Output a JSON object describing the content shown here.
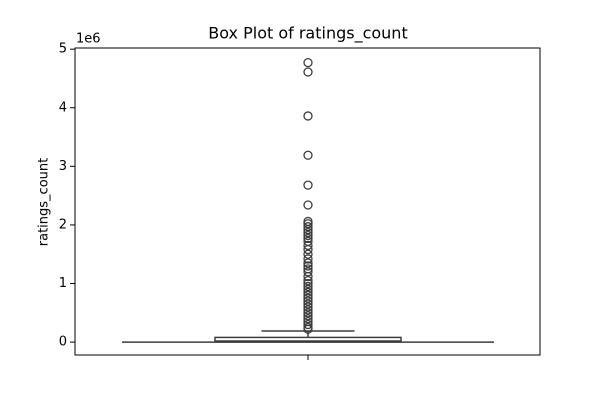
{
  "chart_data": {
    "type": "box",
    "title": "Box Plot of ratings_count",
    "y_label": "ratings_count",
    "offset_label": "1e6",
    "ylim": [
      -0.22,
      5.02
    ],
    "yticks": [
      0,
      1,
      2,
      3,
      4,
      5
    ],
    "color": "#3d3d3d",
    "whisker_low": 0,
    "q1": 0.005,
    "median": 0.02,
    "q3": 0.08,
    "whisker_high": 0.19,
    "outliers": [
      4.77,
      4.61,
      3.86,
      3.19,
      2.68,
      2.34,
      2.06,
      2.02,
      1.97,
      1.92,
      1.87,
      1.82,
      1.77,
      1.72,
      1.65,
      1.58,
      1.5,
      1.42,
      1.35,
      1.3,
      1.25,
      1.2,
      1.12,
      1.05,
      1.0,
      0.95,
      0.9,
      0.85,
      0.8,
      0.75,
      0.7,
      0.65,
      0.6,
      0.55,
      0.5,
      0.45,
      0.4,
      0.35,
      0.3,
      0.25,
      0.22
    ]
  }
}
